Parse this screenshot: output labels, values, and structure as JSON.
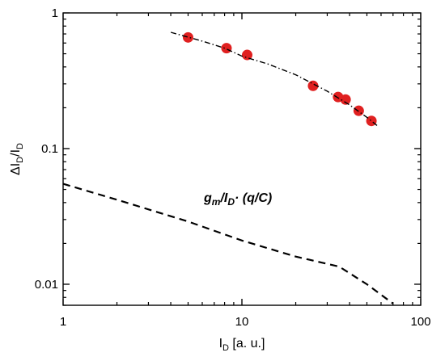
{
  "chart_data": {
    "type": "scatter",
    "xscale": "log",
    "yscale": "log",
    "xlim": [
      1,
      100
    ],
    "ylim": [
      0.007,
      1
    ],
    "xlabel": {
      "main": "I",
      "sub": "D",
      "rest": " [a. u.]"
    },
    "ylabel": {
      "pre": "ΔI",
      "sub1": "D",
      "mid": "/I",
      "sub2": "D"
    },
    "x_ticks": [
      {
        "value": 1,
        "label": "1"
      },
      {
        "value": 10,
        "label": "10"
      },
      {
        "value": 100,
        "label": "100"
      }
    ],
    "y_ticks": [
      {
        "value": 0.01,
        "label": "0.01"
      },
      {
        "value": 0.1,
        "label": "0.1"
      },
      {
        "value": 1,
        "label": "1"
      }
    ],
    "grid": false,
    "annotation": {
      "g": "g",
      "g_sub": "m",
      "slash": "/",
      "i": "I",
      "i_sub": "D",
      "rest": "· (q/C)"
    },
    "series": [
      {
        "kind": "points",
        "color": "#e02020",
        "x": [
          5.0,
          8.2,
          10.7,
          25.0,
          34.5,
          38.0,
          45.0,
          53.0
        ],
        "y": [
          0.66,
          0.55,
          0.49,
          0.29,
          0.24,
          0.23,
          0.19,
          0.16
        ]
      },
      {
        "kind": "dash-dot-line",
        "color": "#000000",
        "x": [
          4.0,
          6.0,
          8.0,
          10.0,
          14.0,
          20.0,
          30.0,
          40.0,
          50.0,
          57.0
        ],
        "y": [
          0.72,
          0.62,
          0.55,
          0.48,
          0.42,
          0.35,
          0.265,
          0.21,
          0.17,
          0.148
        ]
      },
      {
        "kind": "dashed-line",
        "color": "#000000",
        "x": [
          1.0,
          2.0,
          5.0,
          10.0,
          20.0,
          35.0,
          50.0,
          70.0
        ],
        "y": [
          0.055,
          0.042,
          0.029,
          0.021,
          0.016,
          0.0135,
          0.01,
          0.0072
        ]
      }
    ]
  }
}
